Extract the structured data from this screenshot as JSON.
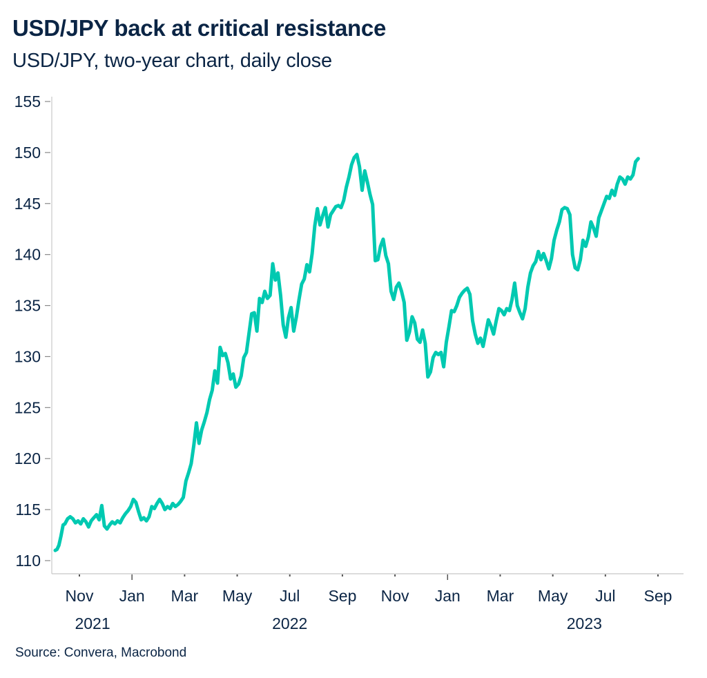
{
  "header": {
    "title": "USD/JPY back at critical resistance",
    "subtitle": "USD/JPY, two-year chart, daily close"
  },
  "footer": {
    "source": "Source: Convera, Macrobond"
  },
  "colors": {
    "line": "#00c9b1",
    "text": "#0b2545",
    "axis": "#c8c8c8",
    "tick": "#555555"
  },
  "chart_data": {
    "type": "line",
    "title": "USD/JPY back at critical resistance",
    "subtitle": "USD/JPY, two-year chart, daily close",
    "xlabel": "",
    "ylabel": "",
    "ylim": [
      110,
      155
    ],
    "yticks": [
      110,
      115,
      120,
      125,
      130,
      135,
      140,
      145,
      150,
      155
    ],
    "xlim_months_from_nov_2021": [
      -1.05,
      23.1
    ],
    "xticks": [
      {
        "label": "Nov",
        "month": 0
      },
      {
        "label": "Jan",
        "month": 2,
        "major": true
      },
      {
        "label": "Mar",
        "month": 4
      },
      {
        "label": "May",
        "month": 6
      },
      {
        "label": "Jul",
        "month": 8
      },
      {
        "label": "Sep",
        "month": 10
      },
      {
        "label": "Nov",
        "month": 12
      },
      {
        "label": "Jan",
        "month": 14,
        "major": true
      },
      {
        "label": "Mar",
        "month": 16
      },
      {
        "label": "May",
        "month": 18
      },
      {
        "label": "Jul",
        "month": 20
      },
      {
        "label": "Sep",
        "month": 22
      }
    ],
    "year_labels": [
      {
        "label": "2021",
        "month": 0.5
      },
      {
        "label": "2022",
        "month": 8
      },
      {
        "label": "2023",
        "month": 19.2
      }
    ],
    "grid": false,
    "legend": "none",
    "series": [
      {
        "name": "USD/JPY",
        "x_months_from_nov_2021": [
          -0.92,
          -0.85,
          -0.78,
          -0.7,
          -0.62,
          -0.55,
          -0.45,
          -0.35,
          -0.25,
          -0.15,
          -0.05,
          0.05,
          0.15,
          0.25,
          0.35,
          0.45,
          0.55,
          0.65,
          0.75,
          0.85,
          0.95,
          1.05,
          1.15,
          1.25,
          1.35,
          1.45,
          1.55,
          1.65,
          1.75,
          1.85,
          1.95,
          2.05,
          2.15,
          2.25,
          2.35,
          2.45,
          2.55,
          2.65,
          2.75,
          2.85,
          2.95,
          3.05,
          3.15,
          3.25,
          3.35,
          3.45,
          3.55,
          3.65,
          3.75,
          3.85,
          3.95,
          4.05,
          4.15,
          4.25,
          4.35,
          4.45,
          4.55,
          4.65,
          4.75,
          4.85,
          4.95,
          5.05,
          5.15,
          5.25,
          5.35,
          5.45,
          5.55,
          5.65,
          5.75,
          5.85,
          5.95,
          6.05,
          6.15,
          6.25,
          6.35,
          6.45,
          6.55,
          6.65,
          6.75,
          6.85,
          6.95,
          7.05,
          7.15,
          7.25,
          7.35,
          7.45,
          7.55,
          7.65,
          7.75,
          7.85,
          7.95,
          8.05,
          8.15,
          8.25,
          8.35,
          8.45,
          8.55,
          8.65,
          8.75,
          8.85,
          8.95,
          9.05,
          9.15,
          9.25,
          9.35,
          9.45,
          9.55,
          9.65,
          9.75,
          9.85,
          9.95,
          10.05,
          10.15,
          10.25,
          10.35,
          10.45,
          10.55,
          10.65,
          10.75,
          10.85,
          10.95,
          11.05,
          11.15,
          11.25,
          11.35,
          11.45,
          11.55,
          11.65,
          11.75,
          11.85,
          11.95,
          12.05,
          12.15,
          12.25,
          12.35,
          12.45,
          12.55,
          12.65,
          12.75,
          12.85,
          12.95,
          13.05,
          13.15,
          13.25,
          13.35,
          13.45,
          13.55,
          13.65,
          13.75,
          13.85,
          13.95,
          14.05,
          14.15,
          14.25,
          14.35,
          14.45,
          14.55,
          14.65,
          14.75,
          14.85,
          14.95,
          15.05,
          15.15,
          15.25,
          15.35,
          15.45,
          15.55,
          15.65,
          15.75,
          15.85,
          15.95,
          16.05,
          16.15,
          16.25,
          16.35,
          16.45,
          16.55,
          16.65,
          16.75,
          16.85,
          16.95,
          17.05,
          17.15,
          17.25,
          17.35,
          17.45,
          17.55,
          17.65,
          17.75,
          17.85,
          17.95,
          18.05,
          18.15,
          18.25,
          18.35,
          18.45,
          18.55,
          18.65,
          18.75,
          18.85,
          18.95,
          19.05,
          19.15,
          19.25,
          19.35,
          19.45,
          19.55,
          19.65,
          19.75,
          19.85,
          19.95,
          20.05,
          20.15,
          20.25,
          20.35,
          20.45,
          20.55,
          20.65,
          20.75,
          20.85,
          20.95,
          21.05,
          21.15,
          21.25,
          21.35,
          21.45,
          21.55,
          21.65,
          21.75,
          21.85,
          21.95,
          22.05,
          22.15,
          22.25,
          22.35,
          22.45,
          22.55,
          22.65,
          22.75,
          22.85,
          22.9
        ],
        "values": [
          111.0,
          111.1,
          111.5,
          112.4,
          113.5,
          113.6,
          114.1,
          114.3,
          114.1,
          113.7,
          113.9,
          113.6,
          114.1,
          113.8,
          113.3,
          113.9,
          114.2,
          114.5,
          114.0,
          115.4,
          113.4,
          113.1,
          113.5,
          113.8,
          113.6,
          113.9,
          113.7,
          114.2,
          114.6,
          114.9,
          115.3,
          116.0,
          115.7,
          114.8,
          114.0,
          114.2,
          113.9,
          114.3,
          115.3,
          115.1,
          115.6,
          116.0,
          115.6,
          115.0,
          115.3,
          115.1,
          115.6,
          115.3,
          115.5,
          115.8,
          116.2,
          117.8,
          118.6,
          119.5,
          121.3,
          123.5,
          121.5,
          122.8,
          123.6,
          124.5,
          125.8,
          126.7,
          128.6,
          127.4,
          130.9,
          130.1,
          130.3,
          129.4,
          127.8,
          128.3,
          127.0,
          127.3,
          128.1,
          129.9,
          130.4,
          132.3,
          134.2,
          134.3,
          132.5,
          135.7,
          135.3,
          136.4,
          135.7,
          136.0,
          139.1,
          137.5,
          138.2,
          136.0,
          133.1,
          131.9,
          133.8,
          134.8,
          132.5,
          133.9,
          135.6,
          137.1,
          137.6,
          139.0,
          138.3,
          140.1,
          142.8,
          144.5,
          142.9,
          143.8,
          144.6,
          142.7,
          143.9,
          144.3,
          144.7,
          144.8,
          144.6,
          145.3,
          146.6,
          147.6,
          148.8,
          149.5,
          149.8,
          148.6,
          146.3,
          148.2,
          147.1,
          145.9,
          144.9,
          139.4,
          139.5,
          140.8,
          141.5,
          139.9,
          139.1,
          136.4,
          135.6,
          136.8,
          137.2,
          136.4,
          135.3,
          131.6,
          132.4,
          133.9,
          133.3,
          131.7,
          131.4,
          132.6,
          131.3,
          128.0,
          128.5,
          129.9,
          130.4,
          130.2,
          130.4,
          129.0,
          131.4,
          132.9,
          134.5,
          134.4,
          135.0,
          135.8,
          136.2,
          136.5,
          136.7,
          136.1,
          133.5,
          132.2,
          131.3,
          131.8,
          131.0,
          132.3,
          133.6,
          133.0,
          132.2,
          133.5,
          134.7,
          134.5,
          134.1,
          134.7,
          134.5,
          135.6,
          137.2,
          135.0,
          134.3,
          133.7,
          134.7,
          136.8,
          138.2,
          138.9,
          139.3,
          140.3,
          139.5,
          140.1,
          139.4,
          138.6,
          139.6,
          141.4,
          142.4,
          143.2,
          144.4,
          144.6,
          144.5,
          143.9,
          140.0,
          138.7,
          138.5,
          139.5,
          141.4,
          140.8,
          141.7,
          143.2,
          142.6,
          141.8,
          143.6,
          144.3,
          145.0,
          145.7,
          145.5,
          146.3,
          145.8,
          146.9,
          147.6,
          147.4,
          146.9,
          147.6,
          147.4,
          147.8,
          149.1,
          149.4
        ]
      }
    ]
  }
}
